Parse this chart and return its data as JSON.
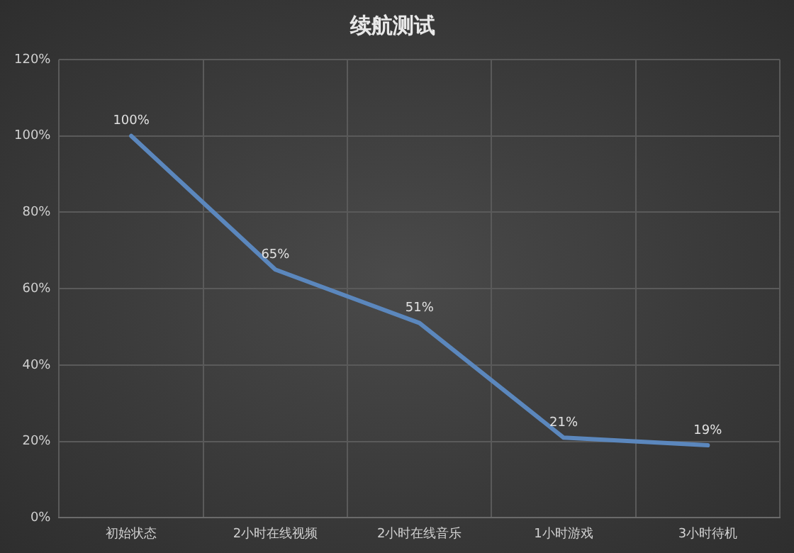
{
  "chart_data": {
    "type": "line",
    "title": "续航测试",
    "categories": [
      "初始状态",
      "2小时在线视频",
      "2小时在线音乐",
      "1小时游戏",
      "3小时待机"
    ],
    "values": [
      100,
      65,
      51,
      21,
      19
    ],
    "color": "#5b87bd",
    "value_labels": [
      "100%",
      "65%",
      "51%",
      "21%",
      "19%"
    ],
    "ylim": [
      0,
      120
    ],
    "yticks": [
      {
        "value": 0,
        "label": "0%"
      },
      {
        "value": 20,
        "label": "20%"
      },
      {
        "value": 40,
        "label": "40%"
      },
      {
        "value": 60,
        "label": "60%"
      },
      {
        "value": 80,
        "label": "80%"
      },
      {
        "value": 100,
        "label": "100%"
      },
      {
        "value": 120,
        "label": "120%"
      }
    ],
    "grid": true,
    "legend": false,
    "marker": "none",
    "line_style": "solid"
  }
}
